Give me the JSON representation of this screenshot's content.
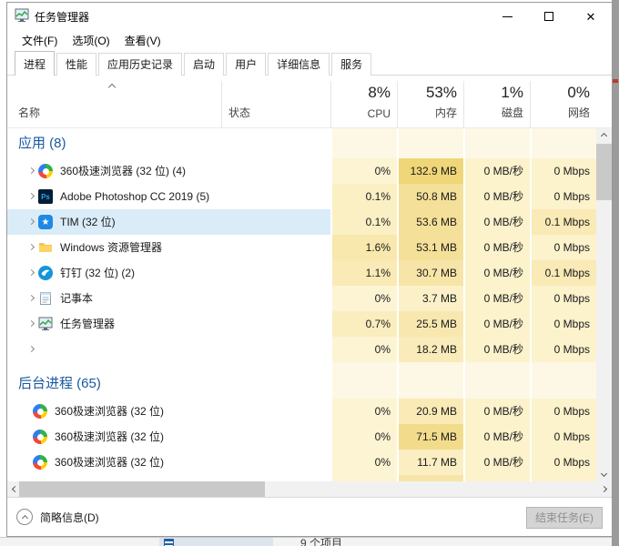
{
  "window": {
    "title": "任务管理器",
    "menu": [
      "文件(F)",
      "选项(O)",
      "查看(V)"
    ],
    "tabs": [
      {
        "label": "进程",
        "active": true
      },
      {
        "label": "性能",
        "active": false
      },
      {
        "label": "应用历史记录",
        "active": false
      },
      {
        "label": "启动",
        "active": false
      },
      {
        "label": "用户",
        "active": false
      },
      {
        "label": "详细信息",
        "active": false
      },
      {
        "label": "服务",
        "active": false
      }
    ],
    "controls": {
      "close_glyph": "✕"
    }
  },
  "columns": {
    "name": "名称",
    "status": "状态",
    "usage": [
      {
        "pct": "8%",
        "label": "CPU"
      },
      {
        "pct": "53%",
        "label": "内存"
      },
      {
        "pct": "1%",
        "label": "磁盘"
      },
      {
        "pct": "0%",
        "label": "网络"
      }
    ]
  },
  "sections": [
    {
      "header": "应用 (8)",
      "rows": [
        {
          "name": "360极速浏览器 (32 位) (4)",
          "icon": "browser-360",
          "chev": true,
          "selected": false,
          "cpu": "0%",
          "mem": "132.9 MB",
          "disk": "0 MB/秒",
          "net": "0 Mbps",
          "bg": {
            "cpu": "#FDF4D4",
            "mem": "#EFD678",
            "disk": "#FCF2CC",
            "net": "#FCF2CC"
          }
        },
        {
          "name": "Adobe Photoshop CC 2019 (5)",
          "icon": "photoshop",
          "chev": true,
          "selected": false,
          "cpu": "0.1%",
          "mem": "50.8 MB",
          "disk": "0 MB/秒",
          "net": "0 Mbps",
          "bg": {
            "cpu": "#FBEFC4",
            "mem": "#F4E098",
            "disk": "#FCF2CC",
            "net": "#FCF2CC"
          }
        },
        {
          "name": "TIM (32 位)",
          "icon": "tim",
          "chev": true,
          "selected": true,
          "cpu": "0.1%",
          "mem": "53.6 MB",
          "disk": "0 MB/秒",
          "net": "0.1 Mbps",
          "bg": {
            "cpu": "#FBEFC4",
            "mem": "#F4E098",
            "disk": "#FCF2CC",
            "net": "#F9EAB6"
          }
        },
        {
          "name": "Windows 资源管理器",
          "icon": "explorer",
          "chev": true,
          "selected": false,
          "cpu": "1.6%",
          "mem": "53.1 MB",
          "disk": "0 MB/秒",
          "net": "0 Mbps",
          "bg": {
            "cpu": "#F8E8AE",
            "mem": "#F4E098",
            "disk": "#FCF2CC",
            "net": "#FCF2CC"
          }
        },
        {
          "name": "钉钉 (32 位) (2)",
          "icon": "dingtalk",
          "chev": true,
          "selected": false,
          "cpu": "1.1%",
          "mem": "30.7 MB",
          "disk": "0 MB/秒",
          "net": "0.1 Mbps",
          "bg": {
            "cpu": "#F9EAB6",
            "mem": "#F7E5A8",
            "disk": "#FCF2CC",
            "net": "#F9EAB6"
          }
        },
        {
          "name": "记事本",
          "icon": "notepad",
          "chev": true,
          "selected": false,
          "cpu": "0%",
          "mem": "3.7 MB",
          "disk": "0 MB/秒",
          "net": "0 Mbps",
          "bg": {
            "cpu": "#FDF4D4",
            "mem": "#FBF0C8",
            "disk": "#FCF2CC",
            "net": "#FCF2CC"
          }
        },
        {
          "name": "任务管理器",
          "icon": "taskmgr",
          "chev": true,
          "selected": false,
          "cpu": "0.7%",
          "mem": "25.5 MB",
          "disk": "0 MB/秒",
          "net": "0 Mbps",
          "bg": {
            "cpu": "#FAEDBE",
            "mem": "#F8E8B0",
            "disk": "#FCF2CC",
            "net": "#FCF2CC"
          }
        },
        {
          "name": "",
          "icon": "yellow-stripes",
          "chev": true,
          "selected": false,
          "cpu": "0%",
          "mem": "18.2 MB",
          "disk": "0 MB/秒",
          "net": "0 Mbps",
          "bg": {
            "cpu": "#FDF4D4",
            "mem": "#F9EBBA",
            "disk": "#FCF2CC",
            "net": "#FCF2CC"
          }
        }
      ]
    },
    {
      "header": "后台进程 (65)",
      "rows": [
        {
          "name": "360极速浏览器 (32 位)",
          "icon": "browser-360",
          "chev": false,
          "selected": false,
          "cpu": "0%",
          "mem": "20.9 MB",
          "disk": "0 MB/秒",
          "net": "0 Mbps",
          "bg": {
            "cpu": "#FDF4D4",
            "mem": "#F9EAB6",
            "disk": "#FCF2CC",
            "net": "#FCF2CC"
          }
        },
        {
          "name": "360极速浏览器 (32 位)",
          "icon": "browser-360",
          "chev": false,
          "selected": false,
          "cpu": "0%",
          "mem": "71.5 MB",
          "disk": "0 MB/秒",
          "net": "0 Mbps",
          "bg": {
            "cpu": "#FDF4D4",
            "mem": "#F2DC8C",
            "disk": "#FCF2CC",
            "net": "#FCF2CC"
          }
        },
        {
          "name": "360极速浏览器 (32 位)",
          "icon": "browser-360",
          "chev": false,
          "selected": false,
          "cpu": "0%",
          "mem": "11.7 MB",
          "disk": "0 MB/秒",
          "net": "0 Mbps",
          "bg": {
            "cpu": "#FDF4D4",
            "mem": "#FAEEC2",
            "disk": "#FCF2CC",
            "net": "#FCF2CC"
          }
        },
        {
          "name": "",
          "icon": "pink-dot",
          "chev": false,
          "selected": false,
          "partial": true,
          "cpu": "",
          "mem": "",
          "disk": "",
          "net": "",
          "bg": {
            "cpu": "#FDF4D4",
            "mem": "#F7E5A8",
            "disk": "#FCF2CC",
            "net": "#FCF2CC"
          }
        }
      ]
    }
  ],
  "footer": {
    "details_toggle": "简略信息(D)",
    "end_task": "结束任务(E)"
  },
  "background_window": {
    "items_count": "9 个项目"
  },
  "colors": {
    "section_header_text": "#19589f",
    "selected_row_bg": "#d9ecf8",
    "scroll_track": "#f1f1f1",
    "scroll_thumb": "#c9c9c9"
  }
}
